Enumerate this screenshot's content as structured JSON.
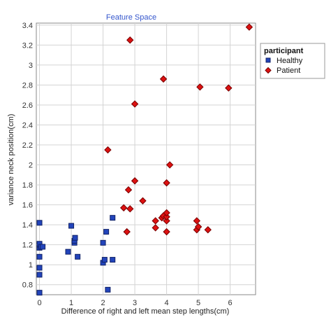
{
  "chart_data": {
    "type": "scatter",
    "title": "Feature Space",
    "xlabel": "Difference of right and left mean step lengths(cm)",
    "ylabel": "variance neck position(cm)",
    "xlim": [
      -0.1,
      6.8
    ],
    "ylim": [
      0.7,
      3.42
    ],
    "x_ticks": [
      0,
      1,
      2,
      3,
      4,
      5,
      6
    ],
    "y_ticks": [
      0.8,
      1,
      1.2,
      1.4,
      1.6,
      1.8,
      2,
      2.2,
      2.4,
      2.6,
      2.8,
      3,
      3.2,
      3.4
    ],
    "grid": true,
    "legend_title": "participant",
    "legend_position": "top-right",
    "series": [
      {
        "name": "Healthy",
        "marker": "square",
        "color": "#2244bb",
        "points": [
          [
            0.0,
            0.72
          ],
          [
            0.0,
            0.9
          ],
          [
            0.0,
            0.97
          ],
          [
            0.0,
            1.08
          ],
          [
            0.0,
            1.17
          ],
          [
            0.0,
            1.2
          ],
          [
            0.0,
            1.21
          ],
          [
            0.0,
            1.42
          ],
          [
            0.05,
            1.18
          ],
          [
            0.1,
            1.18
          ],
          [
            0.9,
            1.13
          ],
          [
            1.0,
            1.39
          ],
          [
            1.1,
            1.22
          ],
          [
            1.1,
            1.24
          ],
          [
            1.12,
            1.27
          ],
          [
            1.2,
            1.08
          ],
          [
            2.0,
            1.02
          ],
          [
            2.0,
            1.22
          ],
          [
            2.05,
            1.05
          ],
          [
            2.1,
            1.33
          ],
          [
            2.15,
            0.75
          ],
          [
            2.3,
            1.05
          ],
          [
            2.3,
            1.47
          ]
        ]
      },
      {
        "name": "Patient",
        "marker": "diamond",
        "color": "#dd1111",
        "points": [
          [
            2.15,
            2.15
          ],
          [
            2.65,
            1.57
          ],
          [
            2.75,
            1.33
          ],
          [
            2.8,
            1.75
          ],
          [
            2.85,
            1.56
          ],
          [
            2.85,
            3.25
          ],
          [
            3.0,
            1.84
          ],
          [
            3.0,
            2.61
          ],
          [
            3.25,
            1.64
          ],
          [
            3.65,
            1.37
          ],
          [
            3.65,
            1.44
          ],
          [
            3.85,
            1.47
          ],
          [
            3.9,
            1.49
          ],
          [
            3.9,
            2.86
          ],
          [
            4.0,
            1.33
          ],
          [
            4.0,
            1.44
          ],
          [
            4.0,
            1.48
          ],
          [
            4.0,
            1.52
          ],
          [
            4.0,
            1.82
          ],
          [
            4.1,
            2.0
          ],
          [
            4.95,
            1.44
          ],
          [
            4.95,
            1.35
          ],
          [
            5.0,
            1.38
          ],
          [
            5.05,
            2.78
          ],
          [
            5.3,
            1.35
          ],
          [
            5.95,
            2.77
          ],
          [
            6.6,
            3.38
          ]
        ]
      }
    ]
  },
  "colors": {
    "title": "#3355cc",
    "grid": "#d4d4d4",
    "axis": "#888888",
    "healthy_stroke": "#112266",
    "patient_stroke": "#770000"
  }
}
